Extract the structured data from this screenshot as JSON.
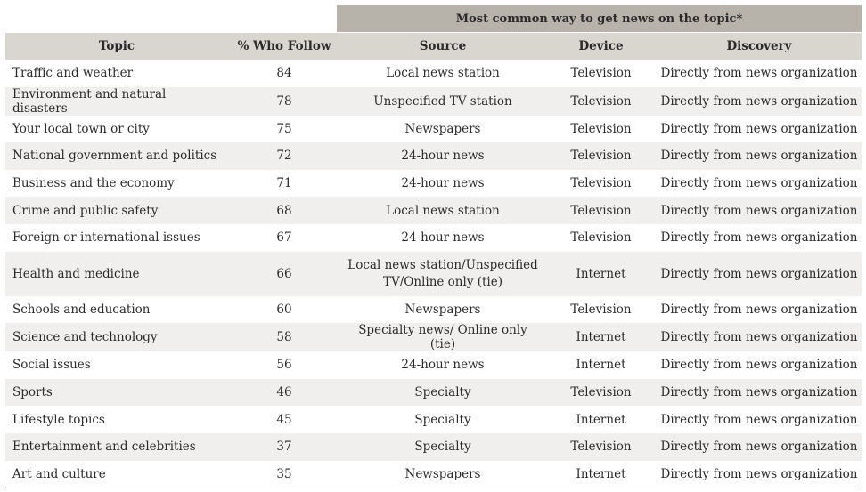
{
  "chart_data": {
    "type": "table",
    "group_header": "Most common way to get news on the topic*",
    "columns": [
      "Topic",
      "% Who Follow",
      "Source",
      "Device",
      "Discovery"
    ],
    "rows": [
      {
        "topic": "Traffic and weather",
        "follow": 84,
        "source": "Local news station",
        "device": "Television",
        "discovery": "Directly from news organization"
      },
      {
        "topic": "Environment and natural disasters",
        "follow": 78,
        "source": "Unspecified TV station",
        "device": "Television",
        "discovery": "Directly from news organization"
      },
      {
        "topic": "Your local town or city",
        "follow": 75,
        "source": "Newspapers",
        "device": "Television",
        "discovery": "Directly from news organization"
      },
      {
        "topic": "National government and politics",
        "follow": 72,
        "source": "24-hour news",
        "device": "Television",
        "discovery": "Directly from news organization"
      },
      {
        "topic": "Business and the economy",
        "follow": 71,
        "source": "24-hour news",
        "device": "Television",
        "discovery": "Directly from news organization"
      },
      {
        "topic": "Crime and public safety",
        "follow": 68,
        "source": "Local news station",
        "device": "Television",
        "discovery": "Directly from news organization"
      },
      {
        "topic": "Foreign or international issues",
        "follow": 67,
        "source": "24-hour news",
        "device": "Television",
        "discovery": "Directly from news organization"
      },
      {
        "topic": "Health and medicine",
        "follow": 66,
        "source": "Local news station/Unspecified TV/Online only (tie)",
        "device": "Internet",
        "discovery": "Directly from news organization"
      },
      {
        "topic": "Schools and education",
        "follow": 60,
        "source": "Newspapers",
        "device": "Television",
        "discovery": "Directly from news organization"
      },
      {
        "topic": "Science and technology",
        "follow": 58,
        "source": "Specialty news/ Online only (tie)",
        "device": "Internet",
        "discovery": "Directly from news organization"
      },
      {
        "topic": "Social issues",
        "follow": 56,
        "source": "24-hour news",
        "device": "Internet",
        "discovery": "Directly from news organization"
      },
      {
        "topic": "Sports",
        "follow": 46,
        "source": "Specialty",
        "device": "Television",
        "discovery": "Directly from news organization"
      },
      {
        "topic": "Lifestyle topics",
        "follow": 45,
        "source": "Specialty",
        "device": "Internet",
        "discovery": "Directly from news organization"
      },
      {
        "topic": "Entertainment and celebrities",
        "follow": 37,
        "source": "Specialty",
        "device": "Television",
        "discovery": "Directly from news organization"
      },
      {
        "topic": "Art and culture",
        "follow": 35,
        "source": "Newspapers",
        "device": "Internet",
        "discovery": "Directly from news organization"
      }
    ]
  }
}
